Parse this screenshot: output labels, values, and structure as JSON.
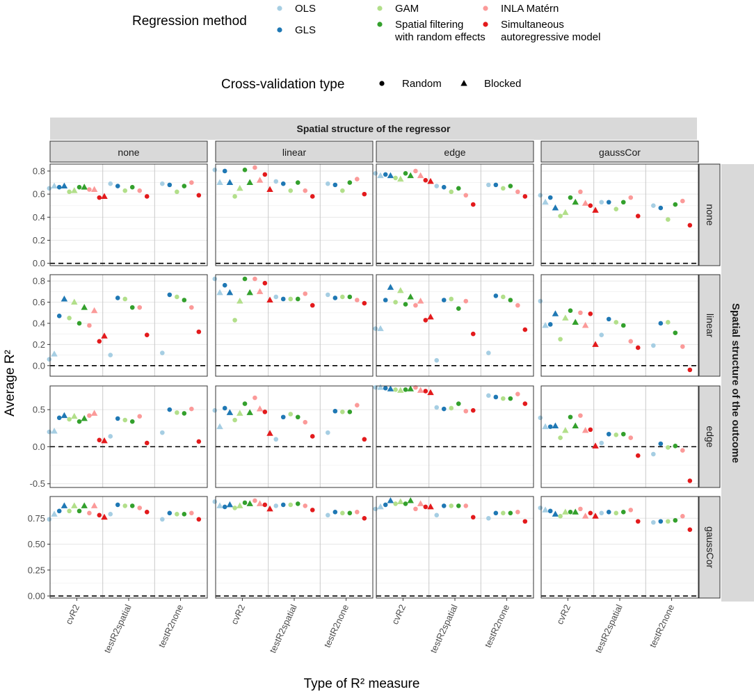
{
  "legend": {
    "method_title": "Regression method",
    "methods": [
      {
        "key": "OLS",
        "lines": [
          "OLS"
        ],
        "color": "#a6cee3"
      },
      {
        "key": "GLS",
        "lines": [
          "GLS"
        ],
        "color": "#1f78b4"
      },
      {
        "key": "GAM",
        "lines": [
          "GAM"
        ],
        "color": "#b2df8a"
      },
      {
        "key": "SF",
        "lines": [
          "Spatial filtering",
          "with random effects"
        ],
        "color": "#33a02c"
      },
      {
        "key": "INLA",
        "lines": [
          "INLA Matérn"
        ],
        "color": "#fb9a99"
      },
      {
        "key": "SAR",
        "lines": [
          "Simultaneous",
          "autoregressive model"
        ],
        "color": "#e31a1c"
      }
    ],
    "cv_title": "Cross-validation type",
    "cv_types": [
      {
        "label": "Random",
        "shape": "circle"
      },
      {
        "label": "Blocked",
        "shape": "triangle"
      }
    ]
  },
  "chart_data": {
    "type": "scatter",
    "top_strip": "Spatial structure of the regressor",
    "right_strip": "Spatial structure of the outcome",
    "ylabel": "Average R²",
    "xlabel": "Type of R² measure",
    "columns": [
      "none",
      "linear",
      "edge",
      "gaussCor"
    ],
    "rows": [
      {
        "label": "none",
        "ylim": [
          -0.02,
          0.86
        ],
        "ticks": [
          0.0,
          0.2,
          0.4,
          0.6,
          0.8
        ],
        "tick_labels": [
          "0.0",
          "0.2",
          "0.4",
          "0.6",
          "0.8"
        ]
      },
      {
        "label": "linear",
        "ylim": [
          -0.1,
          0.86
        ],
        "ticks": [
          0.0,
          0.2,
          0.4,
          0.6,
          0.8
        ],
        "tick_labels": [
          "0.0",
          "0.2",
          "0.4",
          "0.6",
          "0.8"
        ]
      },
      {
        "label": "edge",
        "ylim": [
          -0.55,
          0.82
        ],
        "ticks": [
          -0.5,
          0.0,
          0.5
        ],
        "tick_labels": [
          "-0.5",
          "0.0",
          "0.5"
        ]
      },
      {
        "label": "gaussCor",
        "ylim": [
          -0.02,
          0.96
        ],
        "ticks": [
          0.0,
          0.25,
          0.5,
          0.75
        ],
        "tick_labels": [
          "0.00",
          "0.25",
          "0.50",
          "0.75"
        ]
      }
    ],
    "x_categories": [
      "cvR2",
      "testR2spatial",
      "testR2none"
    ],
    "methods": [
      "OLS",
      "GLS",
      "GAM",
      "SF",
      "INLA",
      "SAR"
    ],
    "zero_line": 0,
    "panels": [
      [
        {
          "cvR2": {
            "random": [
              0.65,
              0.66,
              0.62,
              0.66,
              0.64,
              0.57
            ],
            "blocked": [
              0.67,
              0.67,
              0.63,
              0.66,
              0.64,
              0.58
            ]
          },
          "testR2spatial": [
            0.69,
            0.67,
            0.63,
            0.66,
            0.63,
            0.58
          ],
          "testR2none": [
            0.69,
            0.68,
            0.62,
            0.67,
            0.7,
            0.59
          ]
        },
        {
          "cvR2": {
            "random": [
              0.81,
              0.8,
              0.58,
              0.81,
              0.83,
              0.77
            ],
            "blocked": [
              0.7,
              0.7,
              0.65,
              0.7,
              0.72,
              0.64
            ]
          },
          "testR2spatial": [
            0.71,
            0.69,
            0.63,
            0.7,
            0.63,
            0.58
          ],
          "testR2none": [
            0.69,
            0.68,
            0.63,
            0.7,
            0.73,
            0.6
          ]
        },
        {
          "cvR2": {
            "random": [
              0.78,
              0.77,
              0.74,
              0.78,
              0.8,
              0.72
            ],
            "blocked": [
              0.76,
              0.76,
              0.73,
              0.76,
              0.76,
              0.71
            ]
          },
          "testR2spatial": [
            0.67,
            0.66,
            0.62,
            0.65,
            0.59,
            0.51
          ],
          "testR2none": [
            0.68,
            0.68,
            0.65,
            0.67,
            0.62,
            0.58
          ]
        },
        {
          "cvR2": {
            "random": [
              0.59,
              0.57,
              0.41,
              0.57,
              0.62,
              0.5
            ],
            "blocked": [
              0.53,
              0.48,
              0.44,
              0.53,
              0.52,
              0.46
            ]
          },
          "testR2spatial": [
            0.53,
            0.53,
            0.47,
            0.53,
            0.57,
            0.41
          ],
          "testR2none": [
            0.5,
            0.48,
            0.38,
            0.51,
            0.54,
            0.33
          ]
        }
      ],
      [
        {
          "cvR2": {
            "random": [
              0.06,
              0.47,
              0.45,
              0.4,
              0.38,
              0.23
            ],
            "blocked": [
              0.11,
              0.63,
              0.6,
              0.55,
              0.52,
              0.28
            ]
          },
          "testR2spatial": [
            0.1,
            0.64,
            0.63,
            0.55,
            0.55,
            0.29
          ],
          "testR2none": [
            0.12,
            0.67,
            0.65,
            0.62,
            0.55,
            0.32
          ]
        },
        {
          "cvR2": {
            "random": [
              0.82,
              0.76,
              0.43,
              0.82,
              0.82,
              0.78
            ],
            "blocked": [
              0.69,
              0.69,
              0.61,
              0.69,
              0.7,
              0.62
            ]
          },
          "testR2spatial": [
            0.65,
            0.63,
            0.63,
            0.63,
            0.68,
            0.57
          ],
          "testR2none": [
            0.67,
            0.64,
            0.65,
            0.65,
            0.62,
            0.59
          ]
        },
        {
          "cvR2": {
            "random": [
              0.35,
              0.62,
              0.6,
              0.58,
              0.57,
              0.43
            ],
            "blocked": [
              0.35,
              0.74,
              0.71,
              0.65,
              0.61,
              0.46
            ]
          },
          "testR2spatial": [
            0.05,
            0.62,
            0.63,
            0.54,
            0.61,
            0.3
          ],
          "testR2none": [
            0.12,
            0.66,
            0.65,
            0.62,
            0.57,
            0.34
          ]
        },
        {
          "cvR2": {
            "random": [
              0.61,
              0.39,
              0.25,
              0.52,
              0.5,
              0.49
            ],
            "blocked": [
              0.38,
              0.49,
              0.45,
              0.41,
              0.38,
              0.2
            ]
          },
          "testR2spatial": [
            0.29,
            0.44,
            0.41,
            0.38,
            0.23,
            0.17
          ],
          "testR2none": [
            0.19,
            0.4,
            0.41,
            0.31,
            0.18,
            -0.04
          ]
        }
      ],
      [
        {
          "cvR2": {
            "random": [
              0.2,
              0.39,
              0.37,
              0.34,
              0.42,
              0.09
            ],
            "blocked": [
              0.21,
              0.42,
              0.41,
              0.38,
              0.45,
              0.08
            ]
          },
          "testR2spatial": [
            0.14,
            0.38,
            0.36,
            0.34,
            0.41,
            0.05
          ],
          "testR2none": [
            0.19,
            0.5,
            0.46,
            0.45,
            0.51,
            0.07
          ]
        },
        {
          "cvR2": {
            "random": [
              0.49,
              0.52,
              0.36,
              0.58,
              0.66,
              0.47
            ],
            "blocked": [
              0.27,
              0.46,
              0.45,
              0.46,
              0.51,
              0.18
            ]
          },
          "testR2spatial": [
            0.1,
            0.4,
            0.44,
            0.4,
            0.33,
            0.14
          ],
          "testR2none": [
            0.19,
            0.48,
            0.47,
            0.47,
            0.56,
            0.1
          ]
        },
        {
          "cvR2": {
            "random": [
              0.8,
              0.79,
              0.77,
              0.77,
              0.8,
              0.75
            ],
            "blocked": [
              0.8,
              0.78,
              0.76,
              0.78,
              0.76,
              0.73
            ]
          },
          "testR2spatial": [
            0.53,
            0.51,
            0.52,
            0.58,
            0.48,
            0.49
          ],
          "testR2none": [
            0.69,
            0.67,
            0.65,
            0.65,
            0.71,
            0.58
          ]
        },
        {
          "cvR2": {
            "random": [
              0.39,
              0.27,
              0.12,
              0.4,
              0.42,
              0.23
            ],
            "blocked": [
              0.27,
              0.28,
              0.22,
              0.28,
              0.22,
              0.01
            ]
          },
          "testR2spatial": [
            0.05,
            0.17,
            0.16,
            0.17,
            0.12,
            -0.12
          ],
          "testR2none": [
            -0.1,
            0.04,
            -0.01,
            0.01,
            -0.05,
            -0.46
          ]
        }
      ],
      [
        {
          "cvR2": {
            "random": [
              0.74,
              0.82,
              0.82,
              0.82,
              0.8,
              0.78
            ],
            "blocked": [
              0.79,
              0.87,
              0.87,
              0.87,
              0.87,
              0.76
            ]
          },
          "testR2spatial": [
            0.79,
            0.88,
            0.87,
            0.87,
            0.85,
            0.81
          ],
          "testR2none": [
            0.74,
            0.8,
            0.79,
            0.79,
            0.8,
            0.74
          ]
        },
        {
          "cvR2": {
            "random": [
              0.91,
              0.86,
              0.85,
              0.9,
              0.92,
              0.88
            ],
            "blocked": [
              0.87,
              0.88,
              0.87,
              0.89,
              0.89,
              0.84
            ]
          },
          "testR2spatial": [
            0.87,
            0.88,
            0.88,
            0.89,
            0.87,
            0.83
          ],
          "testR2none": [
            0.78,
            0.81,
            0.8,
            0.8,
            0.81,
            0.75
          ]
        },
        {
          "cvR2": {
            "random": [
              0.84,
              0.88,
              0.89,
              0.89,
              0.84,
              0.86
            ],
            "blocked": [
              0.86,
              0.92,
              0.91,
              0.92,
              0.89,
              0.86
            ]
          },
          "testR2spatial": [
            0.78,
            0.87,
            0.87,
            0.87,
            0.87,
            0.76
          ],
          "testR2none": [
            0.75,
            0.8,
            0.8,
            0.8,
            0.81,
            0.72
          ]
        },
        {
          "cvR2": {
            "random": [
              0.85,
              0.82,
              0.77,
              0.81,
              0.84,
              0.8
            ],
            "blocked": [
              0.83,
              0.79,
              0.81,
              0.81,
              0.77,
              0.77
            ]
          },
          "testR2spatial": [
            0.8,
            0.81,
            0.8,
            0.81,
            0.83,
            0.72
          ],
          "testR2none": [
            0.71,
            0.72,
            0.72,
            0.73,
            0.77,
            0.64
          ]
        }
      ]
    ]
  }
}
